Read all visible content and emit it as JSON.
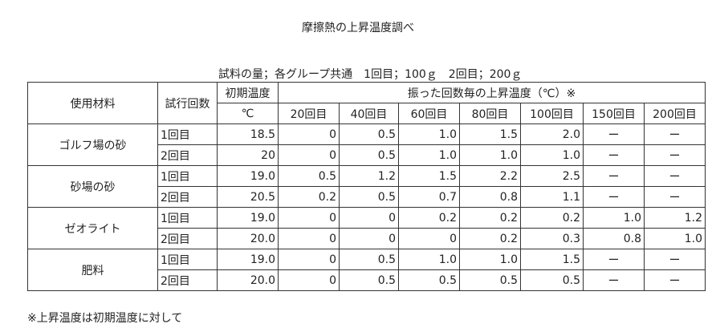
{
  "title": "摩擦熱の上昇温度調べ",
  "subtitle": "試料の量；各グループ共通　1回目；100ｇ　2回目；200ｇ",
  "header": {
    "material": "使用材料",
    "trial": "試行回数",
    "initial_temp": "初期温度",
    "initial_unit": "℃",
    "rise_group": "振った回数毎の上昇温度（℃）※",
    "counts": [
      "20回目",
      "40回目",
      "60回目",
      "80回目",
      "100回目",
      "150回目",
      "200回目"
    ]
  },
  "rows": [
    {
      "material": "ゴルフ場の砂",
      "trial": "1回目",
      "initial": "18.5",
      "values": [
        "0",
        "0.5",
        "1.0",
        "1.5",
        "2.0",
        "ー",
        "ー"
      ]
    },
    {
      "material": "ゴルフ場の砂",
      "trial": "2回目",
      "initial": "20",
      "values": [
        "0",
        "0.5",
        "1.0",
        "1.0",
        "1.0",
        "ー",
        "ー"
      ]
    },
    {
      "material": "砂場の砂",
      "trial": "1回目",
      "initial": "19.0",
      "values": [
        "0.5",
        "1.2",
        "1.5",
        "2.2",
        "2.5",
        "ー",
        "ー"
      ]
    },
    {
      "material": "砂場の砂",
      "trial": "2回目",
      "initial": "20.5",
      "values": [
        "0.2",
        "0.5",
        "0.7",
        "0.8",
        "1.1",
        "ー",
        "ー"
      ]
    },
    {
      "material": "ゼオライト",
      "trial": "1回目",
      "initial": "19.0",
      "values": [
        "0",
        "0",
        "0.2",
        "0.2",
        "0.2",
        "1.0",
        "1.2"
      ]
    },
    {
      "material": "ゼオライト",
      "trial": "2回目",
      "initial": "20.0",
      "values": [
        "0",
        "0",
        "0",
        "0.2",
        "0.3",
        "0.8",
        "1.0"
      ]
    },
    {
      "material": "肥料",
      "trial": "1回目",
      "initial": "19.0",
      "values": [
        "0",
        "0.5",
        "1.0",
        "1.0",
        "1.5",
        "ー",
        "ー"
      ]
    },
    {
      "material": "肥料",
      "trial": "2回目",
      "initial": "20.0",
      "values": [
        "0",
        "0.5",
        "0.5",
        "0.5",
        "0.5",
        "ー",
        "ー"
      ]
    }
  ],
  "footnote": "※上昇温度は初期温度に対して"
}
